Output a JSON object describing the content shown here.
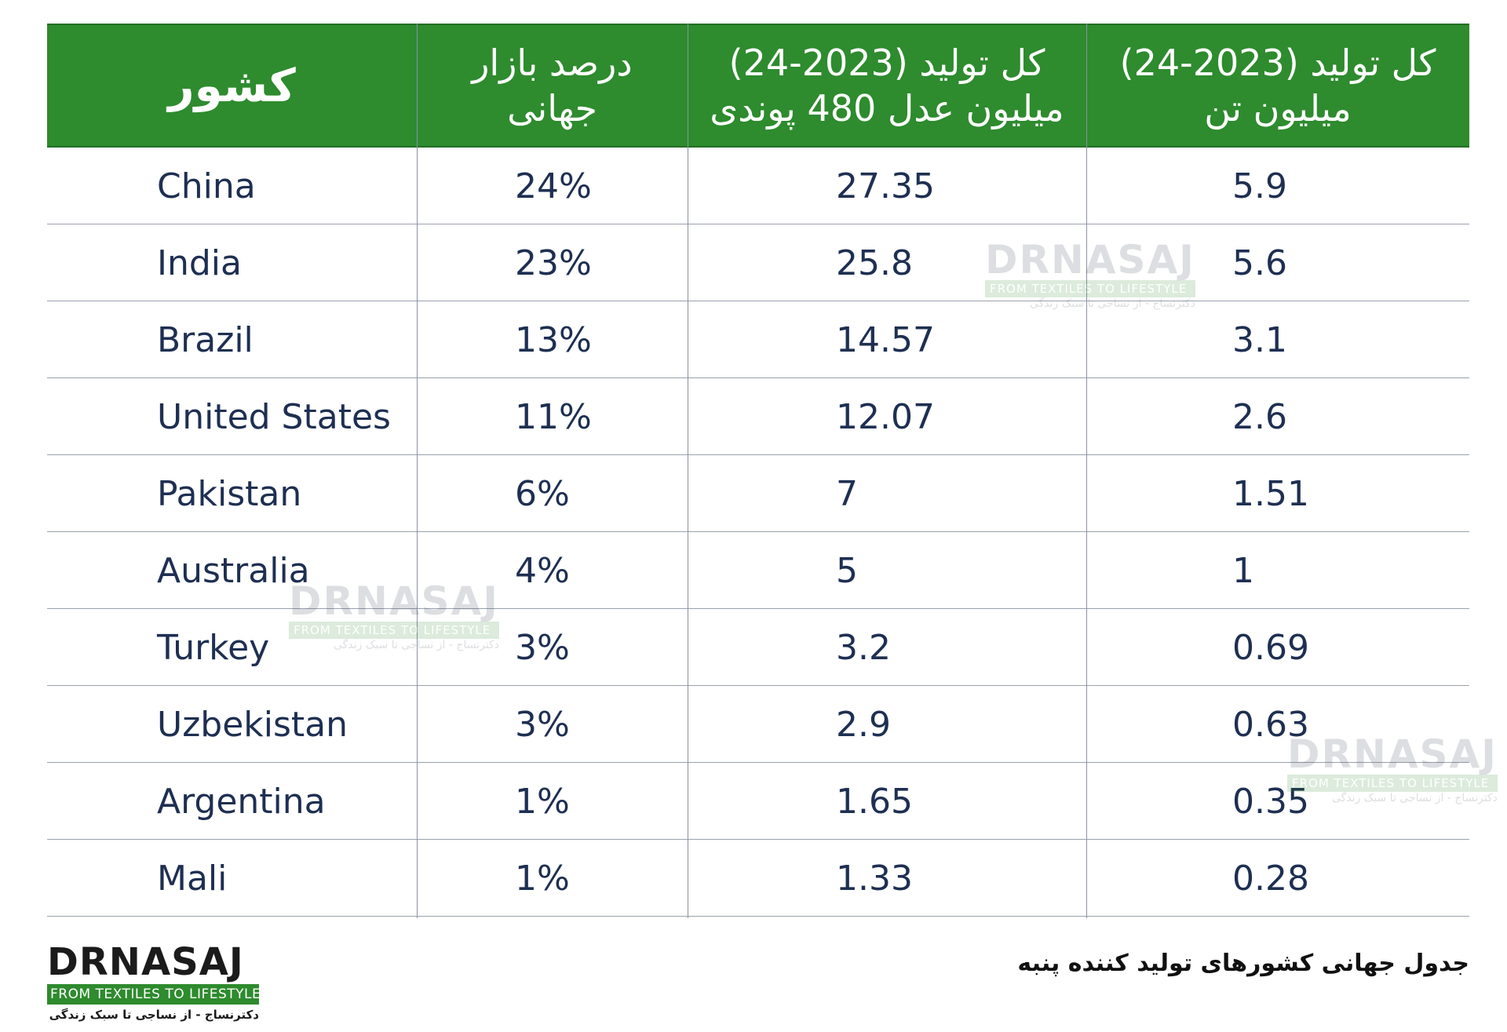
{
  "table": {
    "headers": {
      "country": "کشور",
      "share_line1": "درصد بازار",
      "share_line2": "جهانی",
      "bales_line1": "کل تولید (2023-24)",
      "bales_line2": "میلیون عدل 480 پوندی",
      "tonnes_line1": "کل تولید (2023-24)",
      "tonnes_line2": "میلیون تن"
    },
    "rows": [
      {
        "country": "China",
        "share": "24%",
        "bales": "27.35",
        "tonnes": "5.9"
      },
      {
        "country": "India",
        "share": "23%",
        "bales": "25.8",
        "tonnes": "5.6"
      },
      {
        "country": "Brazil",
        "share": "13%",
        "bales": "14.57",
        "tonnes": "3.1"
      },
      {
        "country": "United States",
        "share": "11%",
        "bales": "12.07",
        "tonnes": "2.6"
      },
      {
        "country": "Pakistan",
        "share": "6%",
        "bales": "7",
        "tonnes": "1.51"
      },
      {
        "country": "Australia",
        "share": "4%",
        "bales": "5",
        "tonnes": "1"
      },
      {
        "country": "Turkey",
        "share": "3%",
        "bales": "3.2",
        "tonnes": "0.69"
      },
      {
        "country": "Uzbekistan",
        "share": "3%",
        "bales": "2.9",
        "tonnes": "0.63"
      },
      {
        "country": "Argentina",
        "share": "1%",
        "bales": "1.65",
        "tonnes": "0.35"
      },
      {
        "country": "Mali",
        "share": "1%",
        "bales": "1.33",
        "tonnes": "0.28"
      }
    ]
  },
  "watermark": {
    "brand": "DRNASAJ",
    "tagline": "FROM TEXTILES TO LIFESTYLE",
    "persian_tagline": "دکترنساج - از نساجی تا سبک زندگی"
  },
  "logo": {
    "brand": "DRNASAJ",
    "tagline": "FROM TEXTILES TO LIFESTYLE",
    "persian_tagline": "دکترنساج - از نساجی تا سبک زندگی"
  },
  "caption": "جدول جهانی کشورهای تولید کننده پنبه",
  "colors": {
    "header_green": "#2e8b2e",
    "text_navy": "#1e2f52"
  }
}
